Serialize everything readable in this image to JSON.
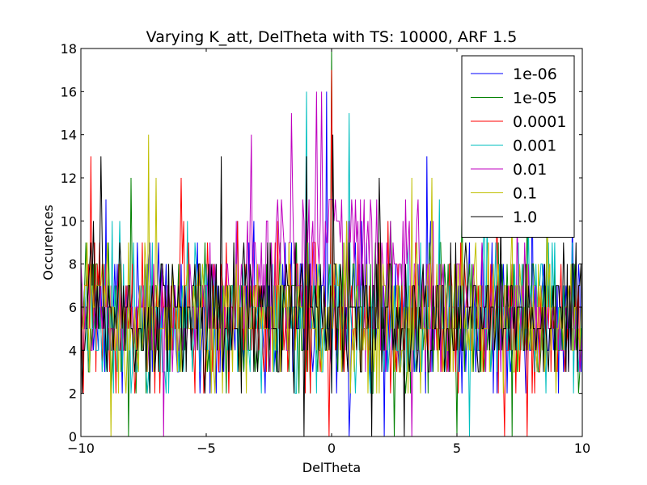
{
  "chart_data": {
    "type": "line",
    "title": "Varying K_att, DelTheta with TS: 10000, ARF 1.5",
    "xlabel": "DelTheta",
    "ylabel": "Occurences",
    "xlim": [
      -10,
      10
    ],
    "ylim": [
      0,
      18
    ],
    "xticks": [
      -10,
      -5,
      0,
      5,
      10
    ],
    "yticks": [
      0,
      2,
      4,
      6,
      8,
      10,
      12,
      14,
      16,
      18
    ],
    "xtick_labels": [
      "−10",
      "−5",
      "0",
      "5",
      "10"
    ],
    "ytick_labels": [
      "0",
      "2",
      "4",
      "6",
      "8",
      "10",
      "12",
      "14",
      "16",
      "18"
    ],
    "grid": false,
    "legend_position": "top-right",
    "series": [
      {
        "name": "1e-06",
        "color": "#0000ff",
        "base": 5.6,
        "amp": 2.6,
        "spike_x": [
          -0.2,
          -9.0,
          3.8,
          8.0,
          9.6
        ],
        "spike_y": [
          16,
          11,
          13,
          12,
          10
        ],
        "zero_x": [
          0.7,
          2.1
        ]
      },
      {
        "name": "1e-05",
        "color": "#008000",
        "base": 5.6,
        "amp": 2.6,
        "spike_x": [
          0.0,
          -8.0,
          5.2,
          8.6
        ],
        "spike_y": [
          18,
          12,
          11,
          11
        ],
        "zero_x": [
          -8.1,
          2.5,
          5.0,
          7.2
        ]
      },
      {
        "name": "0.0001",
        "color": "#ff0000",
        "base": 5.6,
        "amp": 2.6,
        "spike_x": [
          -9.6,
          0.0,
          -6.0,
          6.6
        ],
        "spike_y": [
          13,
          17,
          12,
          12
        ],
        "zero_x": [
          -0.1,
          6.9,
          7.8
        ]
      },
      {
        "name": "0.001",
        "color": "#00bfbf",
        "base": 5.6,
        "amp": 2.6,
        "spike_x": [
          0.7,
          -1.0,
          4.3,
          6.2
        ],
        "spike_y": [
          15,
          16,
          11,
          10
        ],
        "zero_x": [
          5.5
        ]
      },
      {
        "name": "0.01",
        "color": "#bf00bf",
        "base": 6.5,
        "amp": 3.4,
        "spike_x": [
          -0.6,
          -0.4,
          -1.6,
          -3.2,
          7.4
        ],
        "spike_y": [
          16,
          16,
          15,
          14,
          10
        ],
        "zero_x": [
          -6.7,
          3.2
        ]
      },
      {
        "name": "0.1",
        "color": "#bfbf00",
        "base": 5.6,
        "amp": 2.6,
        "spike_x": [
          -7.3,
          -7.0,
          0.6,
          3.2,
          4.0
        ],
        "spike_y": [
          14,
          12,
          10,
          12,
          12
        ],
        "zero_x": [
          -8.8
        ]
      },
      {
        "name": "1.0",
        "color": "#000000",
        "base": 5.6,
        "amp": 2.6,
        "spike_x": [
          -9.2,
          -4.4,
          0.05,
          -1.0,
          1.9,
          2.9
        ],
        "spike_y": [
          13,
          13,
          14,
          13,
          12,
          10
        ],
        "zero_x": [
          -1.1,
          1.6,
          2.9
        ]
      }
    ]
  }
}
